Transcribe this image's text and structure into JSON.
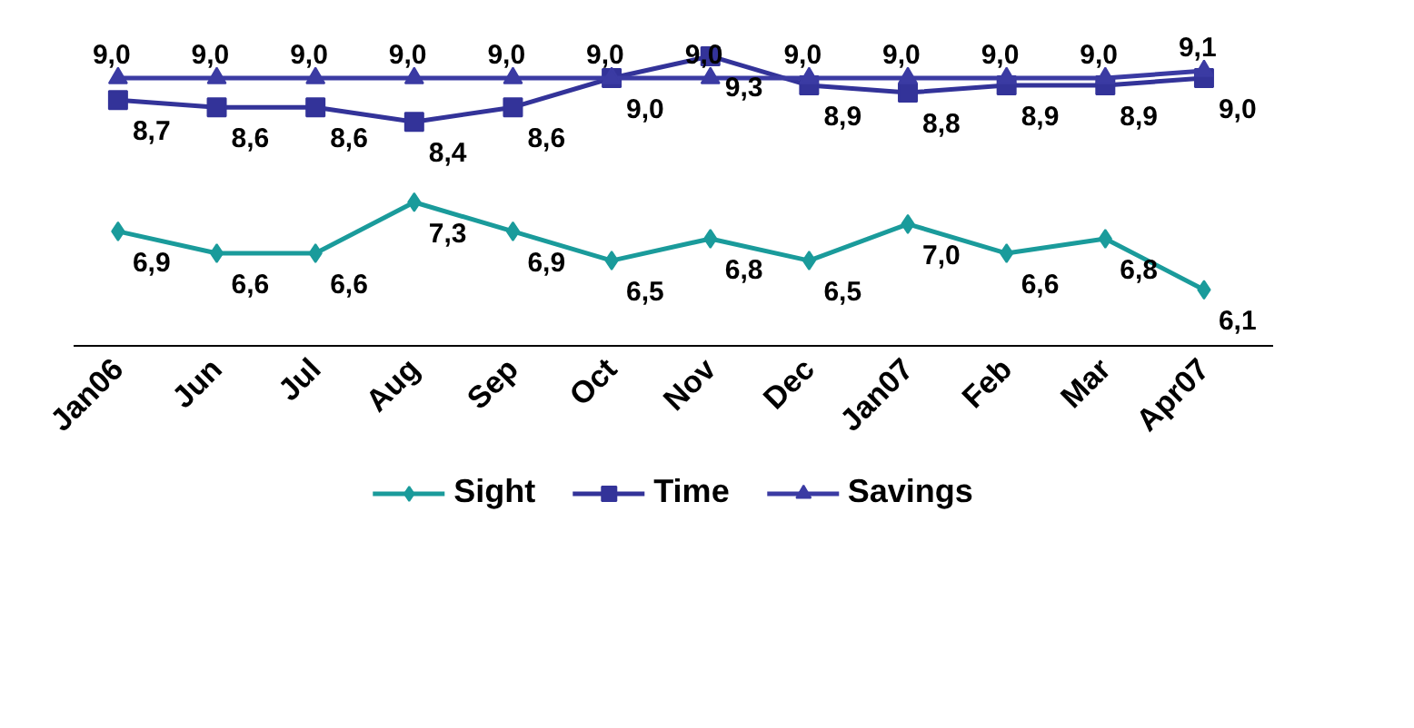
{
  "chart_data": {
    "type": "line",
    "categories": [
      "Jan06",
      "Jun",
      "Jul",
      "Aug",
      "Sep",
      "Oct",
      "Nov",
      "Dec",
      "Jan07",
      "Feb",
      "Mar",
      "Apr07"
    ],
    "series": [
      {
        "name": "Sight",
        "color": "#1a9b9b",
        "marker": "diamond",
        "values": [
          6.9,
          6.6,
          6.6,
          7.3,
          6.9,
          6.5,
          6.8,
          6.5,
          7.0,
          6.6,
          6.8,
          6.1
        ],
        "value_labels": [
          "6,9",
          "6,6",
          "6,6",
          "7,3",
          "6,9",
          "6,5",
          "6,8",
          "6,5",
          "7,0",
          "6,6",
          "6,8",
          "6,1"
        ]
      },
      {
        "name": "Time",
        "color": "#333399",
        "marker": "square",
        "values": [
          8.7,
          8.6,
          8.6,
          8.4,
          8.6,
          9.0,
          9.3,
          8.9,
          8.8,
          8.9,
          8.9,
          9.0
        ],
        "value_labels": [
          "8,7",
          "8,6",
          "8,6",
          "8,4",
          "8,6",
          "9,0",
          "9,3",
          "8,9",
          "8,8",
          "8,9",
          "8,9",
          "9,0"
        ]
      },
      {
        "name": "Savings",
        "color": "#3b3ba3",
        "marker": "triangle",
        "values": [
          9.0,
          9.0,
          9.0,
          9.0,
          9.0,
          9.0,
          9.0,
          9.0,
          9.0,
          9.0,
          9.0,
          9.1
        ],
        "value_labels": [
          "9,0",
          "9,0",
          "9,0",
          "9,0",
          "9,0",
          "9,0",
          "9,0",
          "9,0",
          "9,0",
          "9,0",
          "9,0",
          "9,1"
        ]
      }
    ],
    "legend": "bottom",
    "grid": false
  }
}
